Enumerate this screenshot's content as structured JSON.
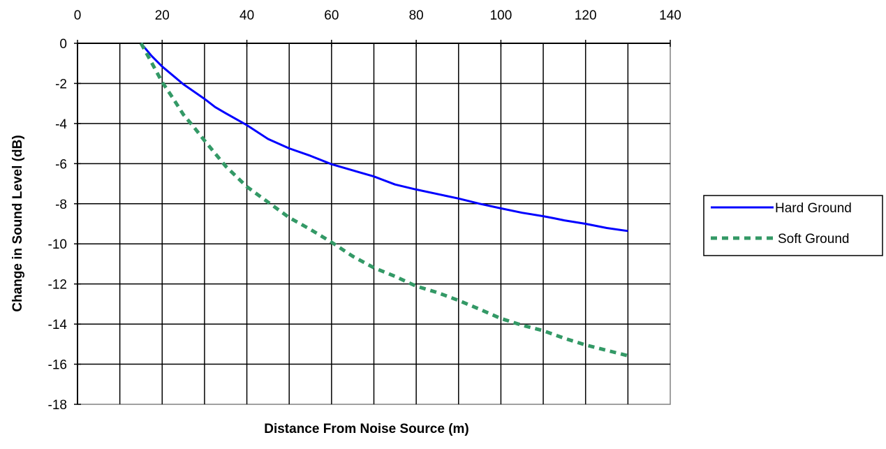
{
  "chart_data": {
    "type": "line",
    "title": "",
    "xlabel": "Distance From Noise Source (m)",
    "ylabel": "Change in Sound Level (dB)",
    "xlim": [
      0,
      140
    ],
    "ylim": [
      -18,
      0
    ],
    "x_ticks": [
      "0",
      "20",
      "40",
      "60",
      "80",
      "100",
      "120",
      "140"
    ],
    "y_ticks": [
      "0",
      "-2",
      "-4",
      "-6",
      "-8",
      "-10",
      "-12",
      "-14",
      "-16",
      "-18"
    ],
    "x_axis_position": "top",
    "grid": true,
    "legend_position": "right",
    "series": [
      {
        "name": "Hard Ground",
        "color": "#0000ff",
        "style": "solid",
        "x": [
          15,
          17.5,
          20,
          25,
          30,
          32.5,
          35,
          40,
          45,
          50,
          55,
          60,
          70,
          75,
          80,
          90,
          95,
          100,
          105,
          110,
          112.5,
          115,
          120,
          125,
          130
        ],
        "y": [
          0,
          -0.63,
          -1.16,
          -2.04,
          -2.77,
          -3.18,
          -3.49,
          -4.08,
          -4.77,
          -5.24,
          -5.61,
          -6.03,
          -6.64,
          -7.04,
          -7.29,
          -7.74,
          -8.0,
          -8.23,
          -8.45,
          -8.62,
          -8.72,
          -8.83,
          -9.0,
          -9.21,
          -9.36
        ]
      },
      {
        "name": "Soft Ground",
        "color": "#339966",
        "style": "dashed",
        "x": [
          15,
          17.5,
          20,
          22.5,
          25,
          27.5,
          30,
          35,
          40,
          45,
          50,
          55,
          60,
          65,
          70,
          75,
          80,
          85,
          90,
          95,
          100,
          105,
          110,
          115,
          120,
          125,
          130
        ],
        "y": [
          0,
          -0.96,
          -1.94,
          -2.72,
          -3.55,
          -4.18,
          -4.85,
          -6.13,
          -7.15,
          -7.92,
          -8.69,
          -9.28,
          -9.92,
          -10.62,
          -11.19,
          -11.62,
          -12.11,
          -12.43,
          -12.82,
          -13.26,
          -13.72,
          -14.06,
          -14.33,
          -14.71,
          -15.04,
          -15.31,
          -15.58
        ]
      }
    ]
  }
}
